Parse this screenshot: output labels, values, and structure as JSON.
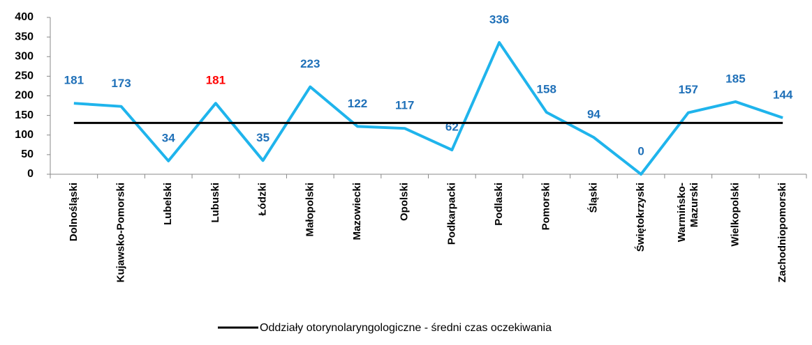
{
  "chart_data": {
    "type": "line",
    "categories": [
      "Dolnośląski",
      "Kujawsko-Pomorski",
      "Lubelski",
      "Lubuski",
      "Łódzki",
      "Małopolski",
      "Mazowiecki",
      "Opolski",
      "Podkarpacki",
      "Podlaski",
      "Pomorski",
      "Śląski",
      "Świętokrzyski",
      [
        "Warmińsko-",
        "Mazurski"
      ],
      "Wielkopolski",
      "Zachodniopomorski"
    ],
    "series": [
      {
        "color": "#1fb4ec",
        "label_color": "#1f70b8",
        "values": [
          181,
          173,
          34,
          181,
          35,
          223,
          122,
          117,
          62,
          336,
          158,
          94,
          0,
          157,
          185,
          144
        ],
        "label_colors": [
          "#1f70b8",
          "#1f70b8",
          "#1f70b8",
          "#ff0000",
          "#1f70b8",
          "#1f70b8",
          "#1f70b8",
          "#1f70b8",
          "#1f70b8",
          "#1f70b8",
          "#1f70b8",
          "#1f70b8",
          "#1f70b8",
          "#1f70b8",
          "#1f70b8",
          "#1f70b8"
        ]
      },
      {
        "name": "Oddziały otorynolaryngologiczne - średni czas oczekiwania",
        "color": "#000000",
        "values": [
          131,
          131,
          131,
          131,
          131,
          131,
          131,
          131,
          131,
          131,
          131,
          131,
          131,
          131,
          131,
          131
        ]
      }
    ],
    "ylim": [
      0,
      400
    ],
    "yticks": [
      0,
      50,
      100,
      150,
      200,
      250,
      300,
      350,
      400
    ],
    "grid": false,
    "legend": "bottom"
  }
}
